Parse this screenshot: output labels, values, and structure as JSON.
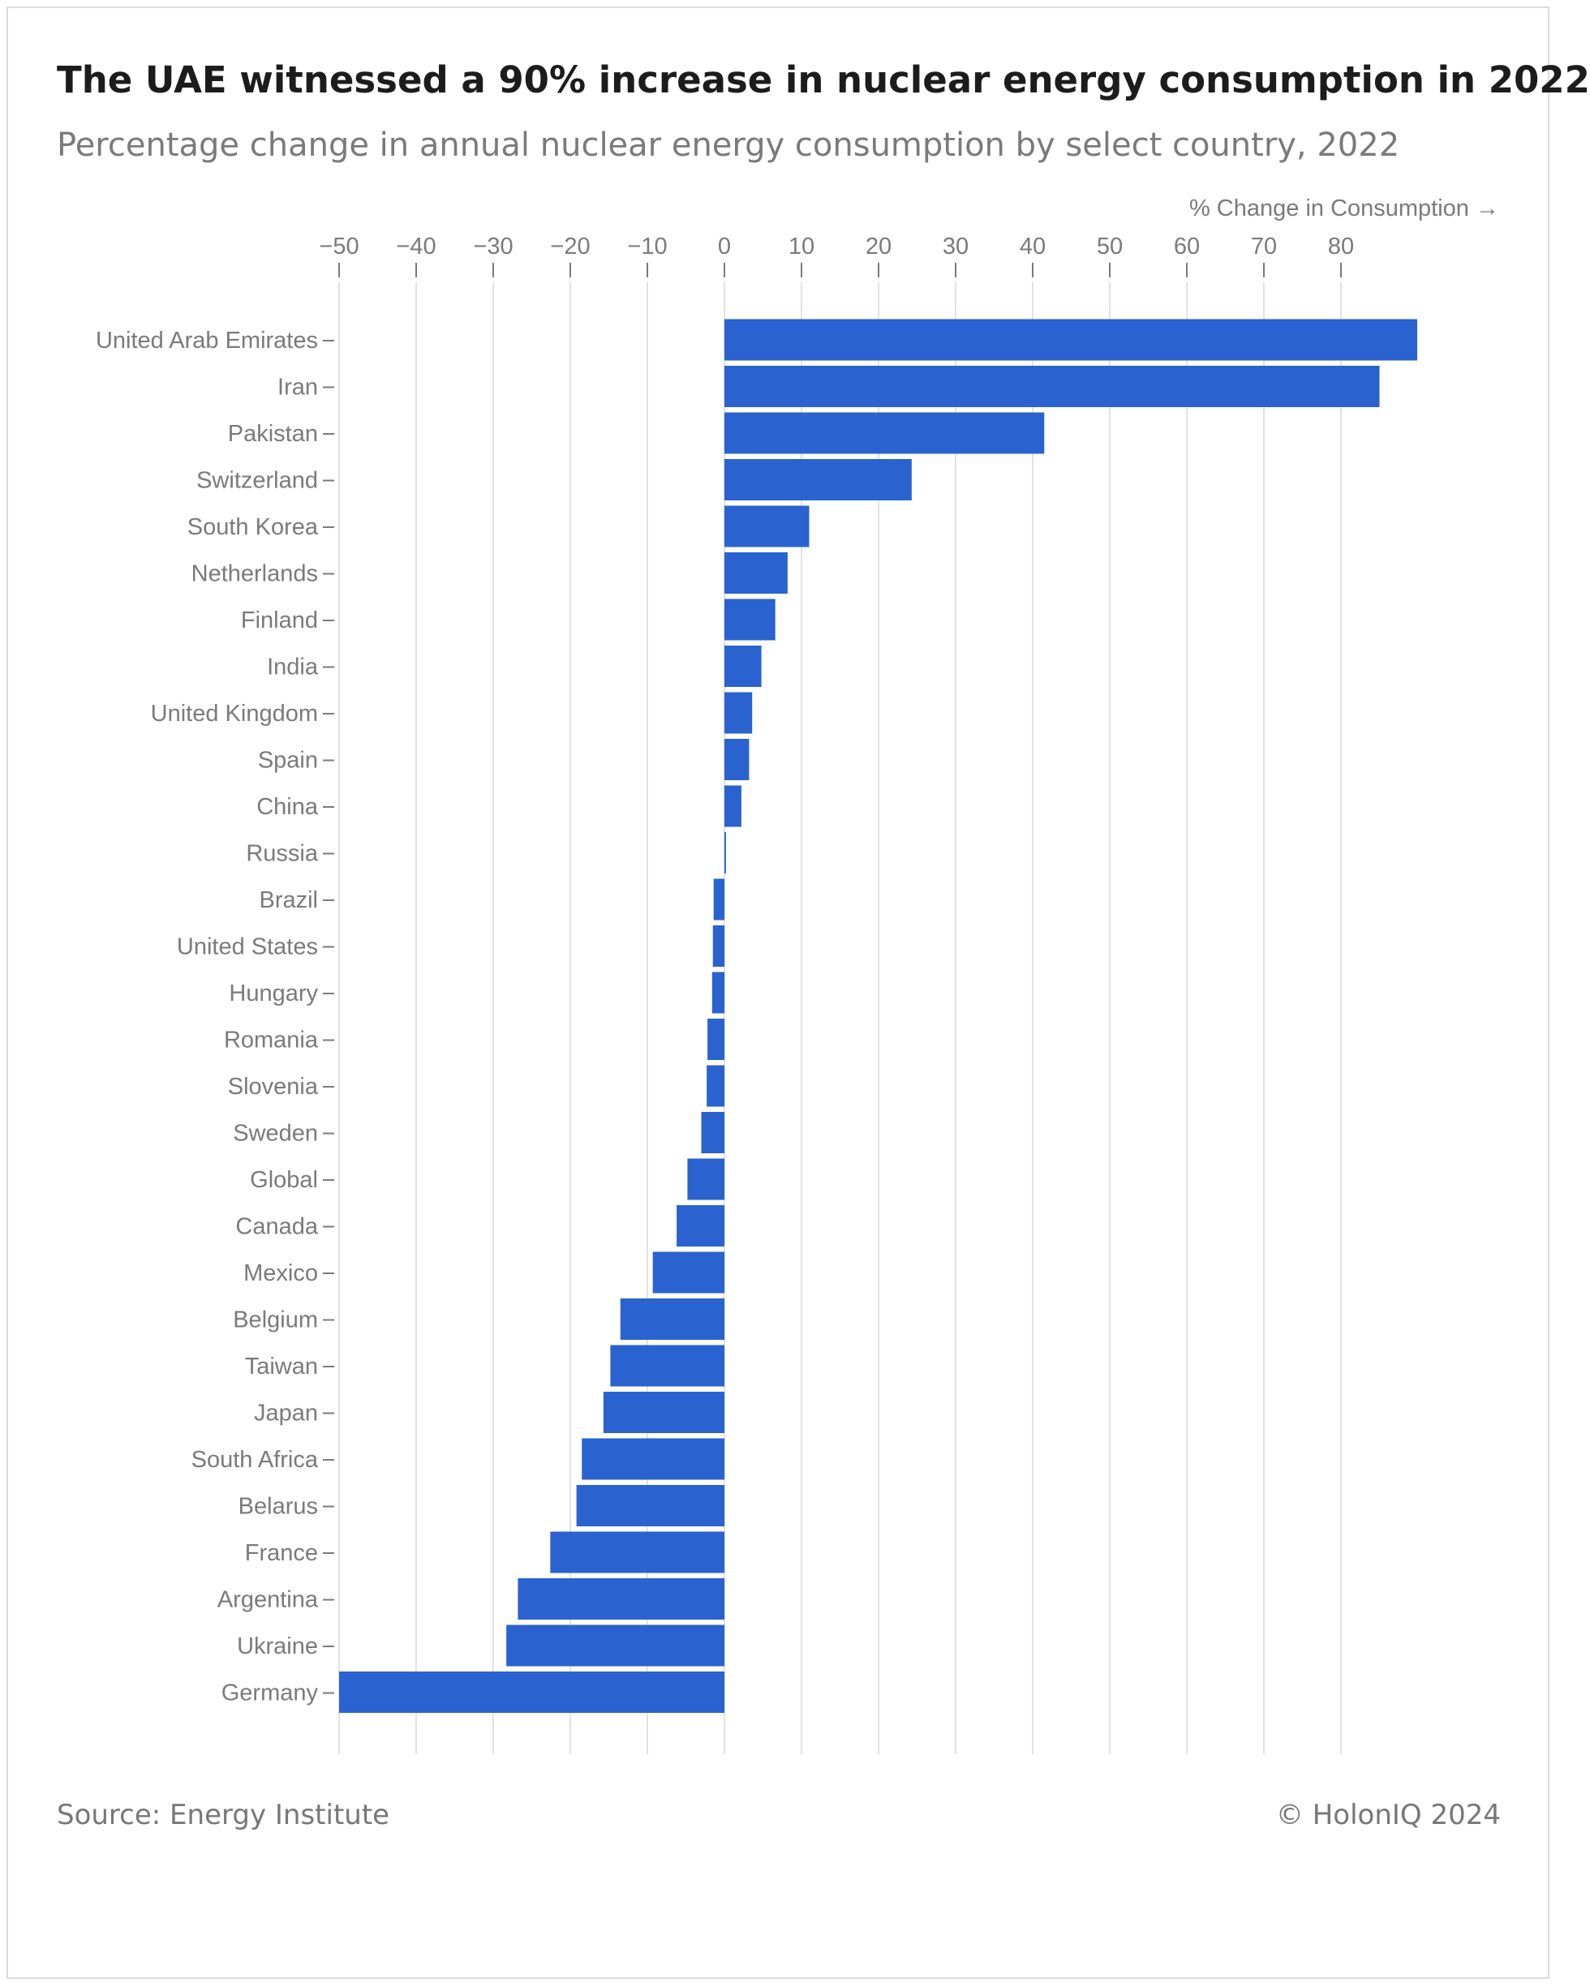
{
  "header": {
    "title": "The UAE witnessed a 90% increase in nuclear energy consumption in 2022",
    "subtitle": "Percentage change in annual nuclear energy consumption by select country, 2022"
  },
  "footer": {
    "source": "Source: Energy Institute",
    "copyright": "© HolonIQ 2024"
  },
  "colors": {
    "bar": "#2a63cf",
    "grid": "#e2e2e2",
    "text": "#7a7a7a"
  },
  "chart_data": {
    "type": "bar",
    "orientation": "horizontal",
    "xlabel": "% Change in Consumption →",
    "xlim": [
      -50,
      90
    ],
    "xticks": [
      -50,
      -40,
      -30,
      -20,
      -10,
      0,
      10,
      20,
      30,
      40,
      50,
      60,
      70,
      80
    ],
    "xtick_labels": [
      "−50",
      "−40",
      "−30",
      "−20",
      "−10",
      "0",
      "10",
      "20",
      "30",
      "40",
      "50",
      "60",
      "70",
      "80"
    ],
    "grid": true,
    "categories": [
      "United Arab Emirates",
      "Iran",
      "Pakistan",
      "Switzerland",
      "South Korea",
      "Netherlands",
      "Finland",
      "India",
      "United Kingdom",
      "Spain",
      "China",
      "Russia",
      "Brazil",
      "United States",
      "Hungary",
      "Romania",
      "Slovenia",
      "Sweden",
      "Global",
      "Canada",
      "Mexico",
      "Belgium",
      "Taiwan",
      "Japan",
      "South Africa",
      "Belarus",
      "France",
      "Argentina",
      "Ukraine",
      "Germany"
    ],
    "values": [
      89.9,
      85.0,
      41.5,
      24.3,
      11.0,
      8.2,
      6.6,
      4.8,
      3.6,
      3.2,
      2.2,
      0.2,
      -1.4,
      -1.5,
      -1.6,
      -2.2,
      -2.3,
      -3.0,
      -4.8,
      -6.2,
      -9.3,
      -13.5,
      -14.8,
      -15.7,
      -18.5,
      -19.2,
      -22.6,
      -26.8,
      -28.3,
      -50.0
    ]
  }
}
